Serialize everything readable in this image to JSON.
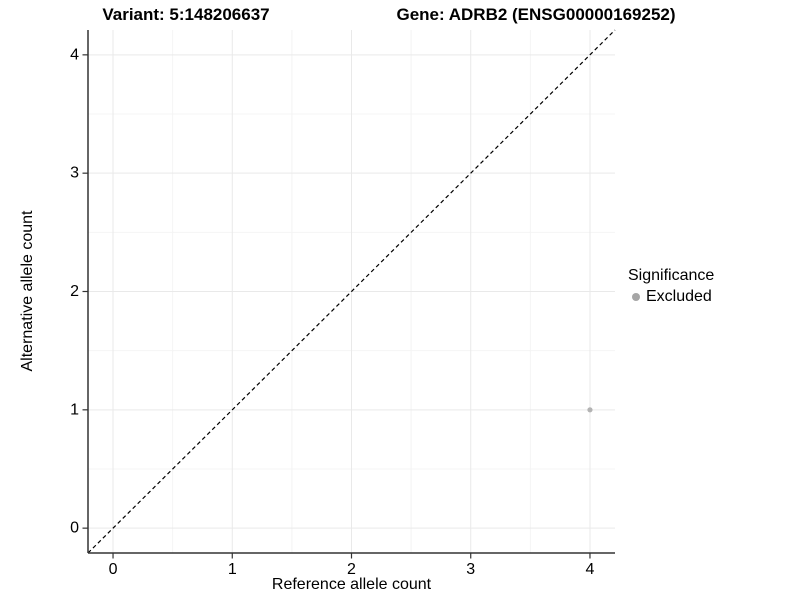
{
  "chart_data": {
    "type": "scatter",
    "title_left": "Variant: 5:148206637",
    "title_right": "Gene: ADRB2 (ENSG00000169252)",
    "xlabel": "Reference allele count",
    "ylabel": "Alternative allele count",
    "xticks": [
      0,
      1,
      2,
      3,
      4
    ],
    "yticks": [
      0,
      1,
      2,
      3,
      4
    ],
    "xlim": [
      -0.21,
      4.21
    ],
    "ylim": [
      -0.21,
      4.21
    ],
    "grid": "major+minor",
    "reference_line": {
      "type": "identity",
      "style": "dashed",
      "from": [
        -0.21,
        -0.21
      ],
      "to": [
        4.21,
        4.21
      ],
      "color": "#000000"
    },
    "series": [
      {
        "name": "Excluded",
        "color": "#b3b3b3",
        "points": [
          {
            "x": 4,
            "y": 1
          }
        ]
      }
    ],
    "legend": {
      "title": "Significance",
      "position": "right",
      "entries": [
        {
          "label": "Excluded",
          "color": "#a6a6a6"
        }
      ]
    },
    "colors": {
      "grid_major": "#e9e9e9",
      "grid_minor": "#f4f4f4",
      "axis": "#333333",
      "tick": "#333333"
    }
  }
}
